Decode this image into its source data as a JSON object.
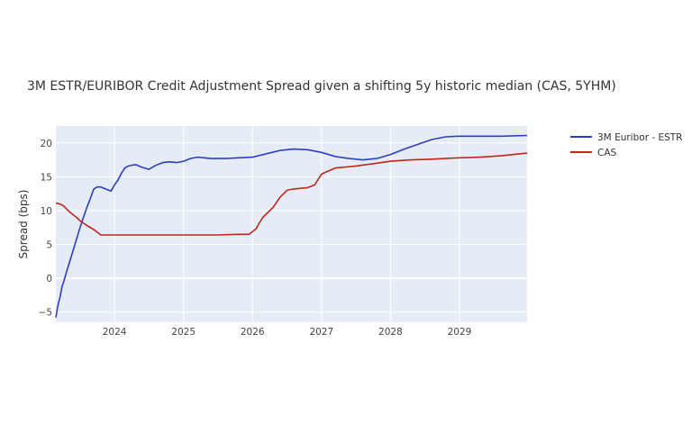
{
  "chart_data": {
    "type": "line",
    "title": "3M ESTR/EURIBOR Credit Adjustment Spread given a shifting 5y historic median (CAS, 5YHM)",
    "xlabel": "",
    "ylabel": "Spread (bps)",
    "xlim": [
      2023.15,
      2029.98
    ],
    "ylim": [
      -6.5,
      22.5
    ],
    "xticks": [
      2024,
      2025,
      2026,
      2027,
      2028,
      2029
    ],
    "xtick_labels": [
      "2024",
      "2025",
      "2026",
      "2027",
      "2028",
      "2029"
    ],
    "yticks": [
      -5,
      0,
      5,
      10,
      15,
      20
    ],
    "ytick_labels": [
      "−5",
      "0",
      "5",
      "10",
      "15",
      "20"
    ],
    "grid": true,
    "legend_position": "top-right",
    "series": [
      {
        "name": "3M Euribor - ESTR",
        "color": "#2b3fc4",
        "x": [
          2023.15,
          2023.18,
          2023.21,
          2023.24,
          2023.27,
          2023.3,
          2023.33,
          2023.36,
          2023.39,
          2023.42,
          2023.45,
          2023.5,
          2023.55,
          2023.6,
          2023.65,
          2023.7,
          2023.75,
          2023.8,
          2023.85,
          2023.9,
          2023.95,
          2024.0,
          2024.05,
          2024.1,
          2024.15,
          2024.2,
          2024.3,
          2024.4,
          2024.5,
          2024.6,
          2024.7,
          2024.8,
          2024.9,
          2025.0,
          2025.1,
          2025.2,
          2025.3,
          2025.4,
          2025.6,
          2025.8,
          2026.0,
          2026.2,
          2026.4,
          2026.6,
          2026.8,
          2027.0,
          2027.2,
          2027.4,
          2027.6,
          2027.8,
          2028.0,
          2028.2,
          2028.4,
          2028.6,
          2028.8,
          2029.0,
          2029.3,
          2029.6,
          2029.98
        ],
        "values": [
          -5.8,
          -4.0,
          -2.8,
          -1.2,
          -0.3,
          0.8,
          1.8,
          2.8,
          3.8,
          4.8,
          5.8,
          7.5,
          9.0,
          10.5,
          11.8,
          13.2,
          13.5,
          13.5,
          13.3,
          13.1,
          12.9,
          13.8,
          14.5,
          15.5,
          16.3,
          16.6,
          16.8,
          16.4,
          16.1,
          16.7,
          17.1,
          17.2,
          17.1,
          17.3,
          17.7,
          17.9,
          17.8,
          17.7,
          17.7,
          17.8,
          17.9,
          18.4,
          18.9,
          19.1,
          19.0,
          18.6,
          18.0,
          17.7,
          17.5,
          17.7,
          18.3,
          19.1,
          19.8,
          20.5,
          20.9,
          21.0,
          21.0,
          21.0,
          21.1
        ]
      },
      {
        "name": "CAS",
        "color": "#c0261c",
        "x": [
          2023.15,
          2023.2,
          2023.25,
          2023.3,
          2023.35,
          2023.4,
          2023.45,
          2023.5,
          2023.6,
          2023.7,
          2023.8,
          2024.0,
          2024.5,
          2025.0,
          2025.5,
          2025.8,
          2025.95,
          2026.05,
          2026.1,
          2026.15,
          2026.2,
          2026.3,
          2026.4,
          2026.5,
          2026.6,
          2026.7,
          2026.8,
          2026.9,
          2027.0,
          2027.2,
          2027.5,
          2027.8,
          2028.0,
          2028.3,
          2028.6,
          2029.0,
          2029.3,
          2029.6,
          2029.98
        ],
        "values": [
          11.1,
          11.0,
          10.8,
          10.3,
          9.8,
          9.4,
          9.0,
          8.5,
          7.8,
          7.2,
          6.4,
          6.4,
          6.4,
          6.4,
          6.4,
          6.5,
          6.5,
          7.3,
          8.2,
          9.0,
          9.5,
          10.5,
          12.0,
          13.0,
          13.2,
          13.3,
          13.4,
          13.8,
          15.4,
          16.3,
          16.6,
          17.0,
          17.3,
          17.5,
          17.6,
          17.8,
          17.9,
          18.1,
          18.5
        ]
      }
    ]
  }
}
